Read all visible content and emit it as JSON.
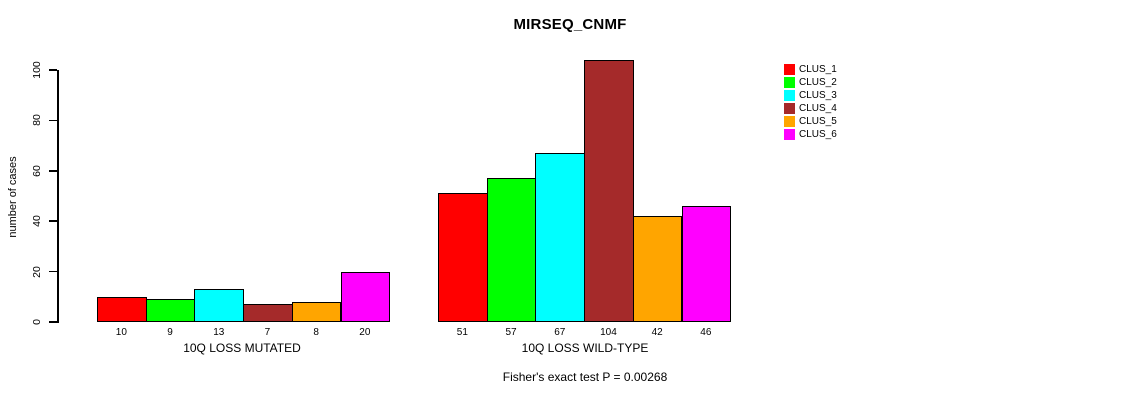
{
  "title": "MIRSEQ_CNMF",
  "footer": "Fisher's exact test P = 0.00268",
  "y_axis": {
    "label": "number of cases",
    "ticks": [
      "0",
      "20",
      "40",
      "60",
      "80",
      "100"
    ]
  },
  "legend": {
    "items": [
      {
        "label": "CLUS_1",
        "color": "#FF0000"
      },
      {
        "label": "CLUS_2",
        "color": "#00FF00"
      },
      {
        "label": "CLUS_3",
        "color": "#00FFFF"
      },
      {
        "label": "CLUS_4",
        "color": "#A52A2A"
      },
      {
        "label": "CLUS_5",
        "color": "#FFA500"
      },
      {
        "label": "CLUS_6",
        "color": "#FF00FF"
      }
    ]
  },
  "chart_data": {
    "type": "bar",
    "title": "MIRSEQ_CNMF",
    "ylabel": "number of cases",
    "xlabel": "",
    "ylim": [
      0,
      104
    ],
    "yticks": [
      0,
      20,
      40,
      60,
      80,
      100
    ],
    "grid": false,
    "legend_position": "right",
    "group_labels": [
      "10Q LOSS MUTATED",
      "10Q LOSS WILD-TYPE"
    ],
    "series": [
      {
        "name": "CLUS_1",
        "color": "#FF0000",
        "values": [
          10,
          51
        ]
      },
      {
        "name": "CLUS_2",
        "color": "#00FF00",
        "values": [
          9,
          57
        ]
      },
      {
        "name": "CLUS_3",
        "color": "#00FFFF",
        "values": [
          13,
          67
        ]
      },
      {
        "name": "CLUS_4",
        "color": "#A52A2A",
        "values": [
          7,
          104
        ]
      },
      {
        "name": "CLUS_5",
        "color": "#FFA500",
        "values": [
          8,
          42
        ]
      },
      {
        "name": "CLUS_6",
        "color": "#FF00FF",
        "values": [
          20,
          46
        ]
      }
    ],
    "annotation": "Fisher's exact test P = 0.00268"
  }
}
